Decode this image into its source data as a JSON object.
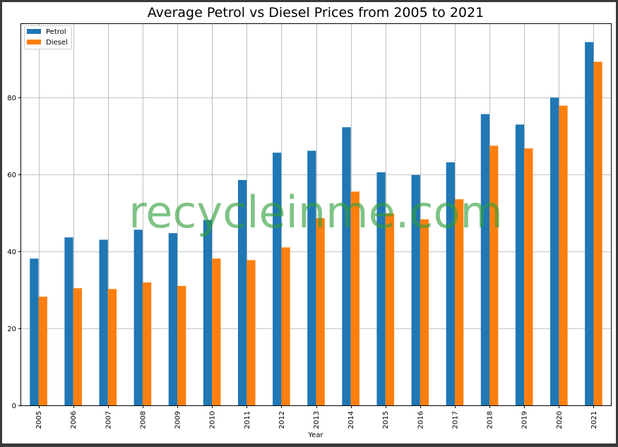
{
  "chart_data": {
    "type": "bar",
    "title": "Average Petrol vs Diesel Prices from 2005 to 2021",
    "xlabel": "Year",
    "ylabel": "",
    "categories": [
      "2005",
      "2006",
      "2007",
      "2008",
      "2009",
      "2010",
      "2011",
      "2012",
      "2013",
      "2014",
      "2015",
      "2016",
      "2017",
      "2018",
      "2019",
      "2020",
      "2021"
    ],
    "series": [
      {
        "name": "Petrol",
        "color": "#1f77b4",
        "values": [
          38.1,
          43.6,
          43.0,
          45.6,
          44.7,
          48.1,
          58.5,
          65.6,
          66.1,
          72.2,
          60.5,
          59.8,
          63.1,
          75.6,
          72.9,
          79.9,
          94.3
        ]
      },
      {
        "name": "Diesel",
        "color": "#ff7f0e",
        "values": [
          28.2,
          30.4,
          30.2,
          31.9,
          31.0,
          38.1,
          37.7,
          41.0,
          48.6,
          55.5,
          49.8,
          48.3,
          53.5,
          67.4,
          66.7,
          77.8,
          89.2
        ]
      }
    ],
    "ylim": [
      0,
      99
    ],
    "yticks": [
      0,
      20,
      40,
      60,
      80
    ],
    "grid": true,
    "legend_position": "top-left"
  },
  "watermark": "recycleinme.com"
}
